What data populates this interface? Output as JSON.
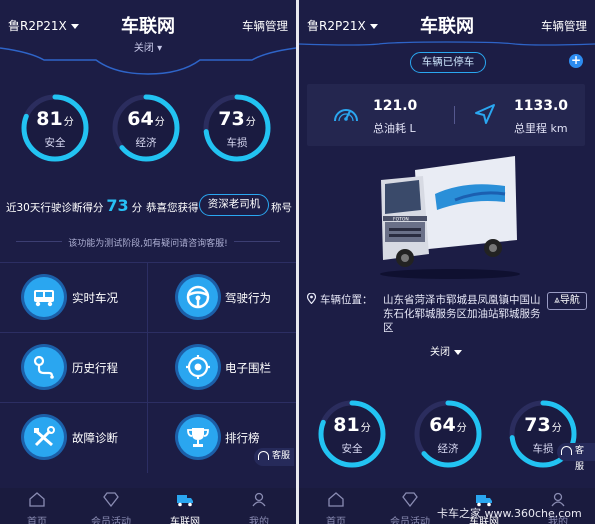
{
  "left": {
    "header": {
      "plate": "鲁R2P21X",
      "title": "车联网",
      "manage": "车辆管理"
    },
    "collapse_label": "关闭",
    "gauges": [
      {
        "value": "81",
        "unit": "分",
        "label": "安全",
        "fraction": 0.81
      },
      {
        "value": "64",
        "unit": "分",
        "label": "经济",
        "fraction": 0.64
      },
      {
        "value": "73",
        "unit": "分",
        "label": "车损",
        "fraction": 0.73
      }
    ],
    "score_prefix": "近30天行驶诊断得分",
    "score_value": "73",
    "score_unit": "分",
    "congrats": "恭喜您获得",
    "badge": "资深老司机",
    "badge_suffix": "称号",
    "notice": "该功能为测试阶段,如有疑问请咨询客服!",
    "menu": [
      {
        "label": "实时车况",
        "icon": "bus-icon"
      },
      {
        "label": "驾驶行为",
        "icon": "steering-wheel-icon"
      },
      {
        "label": "历史行程",
        "icon": "route-icon"
      },
      {
        "label": "电子围栏",
        "icon": "fence-icon"
      },
      {
        "label": "故障诊断",
        "icon": "wrench-icon"
      },
      {
        "label": "排行榜",
        "icon": "trophy-icon"
      }
    ],
    "service": "客服",
    "tabs": [
      {
        "label": "首页",
        "icon": "home-icon"
      },
      {
        "label": "会员活动",
        "icon": "diamond-icon"
      },
      {
        "label": "车联网",
        "icon": "truck-icon"
      },
      {
        "label": "我的",
        "icon": "user-icon"
      }
    ]
  },
  "right": {
    "header": {
      "plate": "鲁R2P21X",
      "title": "车联网",
      "manage": "车辆管理"
    },
    "status": "车辆已停车",
    "fuel_value": "121.0",
    "fuel_label": "总油耗 L",
    "mileage_value": "1133.0",
    "mileage_label": "总里程 km",
    "location_label": "车辆位置：",
    "location_address": "山东省菏泽市郓城县凤凰镇中国山东石化郓城服务区加油站郓城服务区",
    "nav_label": "导航",
    "collapse_label": "关闭",
    "gauges": [
      {
        "value": "81",
        "unit": "分",
        "label": "安全",
        "fraction": 0.81
      },
      {
        "value": "64",
        "unit": "分",
        "label": "经济",
        "fraction": 0.64
      },
      {
        "value": "73",
        "unit": "分",
        "label": "车损",
        "fraction": 0.73
      }
    ],
    "service": "客服",
    "tabs": [
      {
        "label": "首页",
        "icon": "home-icon"
      },
      {
        "label": "会员活动",
        "icon": "diamond-icon"
      },
      {
        "label": "车联网",
        "icon": "truck-icon"
      },
      {
        "label": "我的",
        "icon": "user-icon"
      }
    ]
  },
  "watermark": "卡车之家 www.360che.com",
  "colors": {
    "background": "#1c1d45",
    "accent": "#2aa6f0",
    "ring": "#22c3f2"
  }
}
